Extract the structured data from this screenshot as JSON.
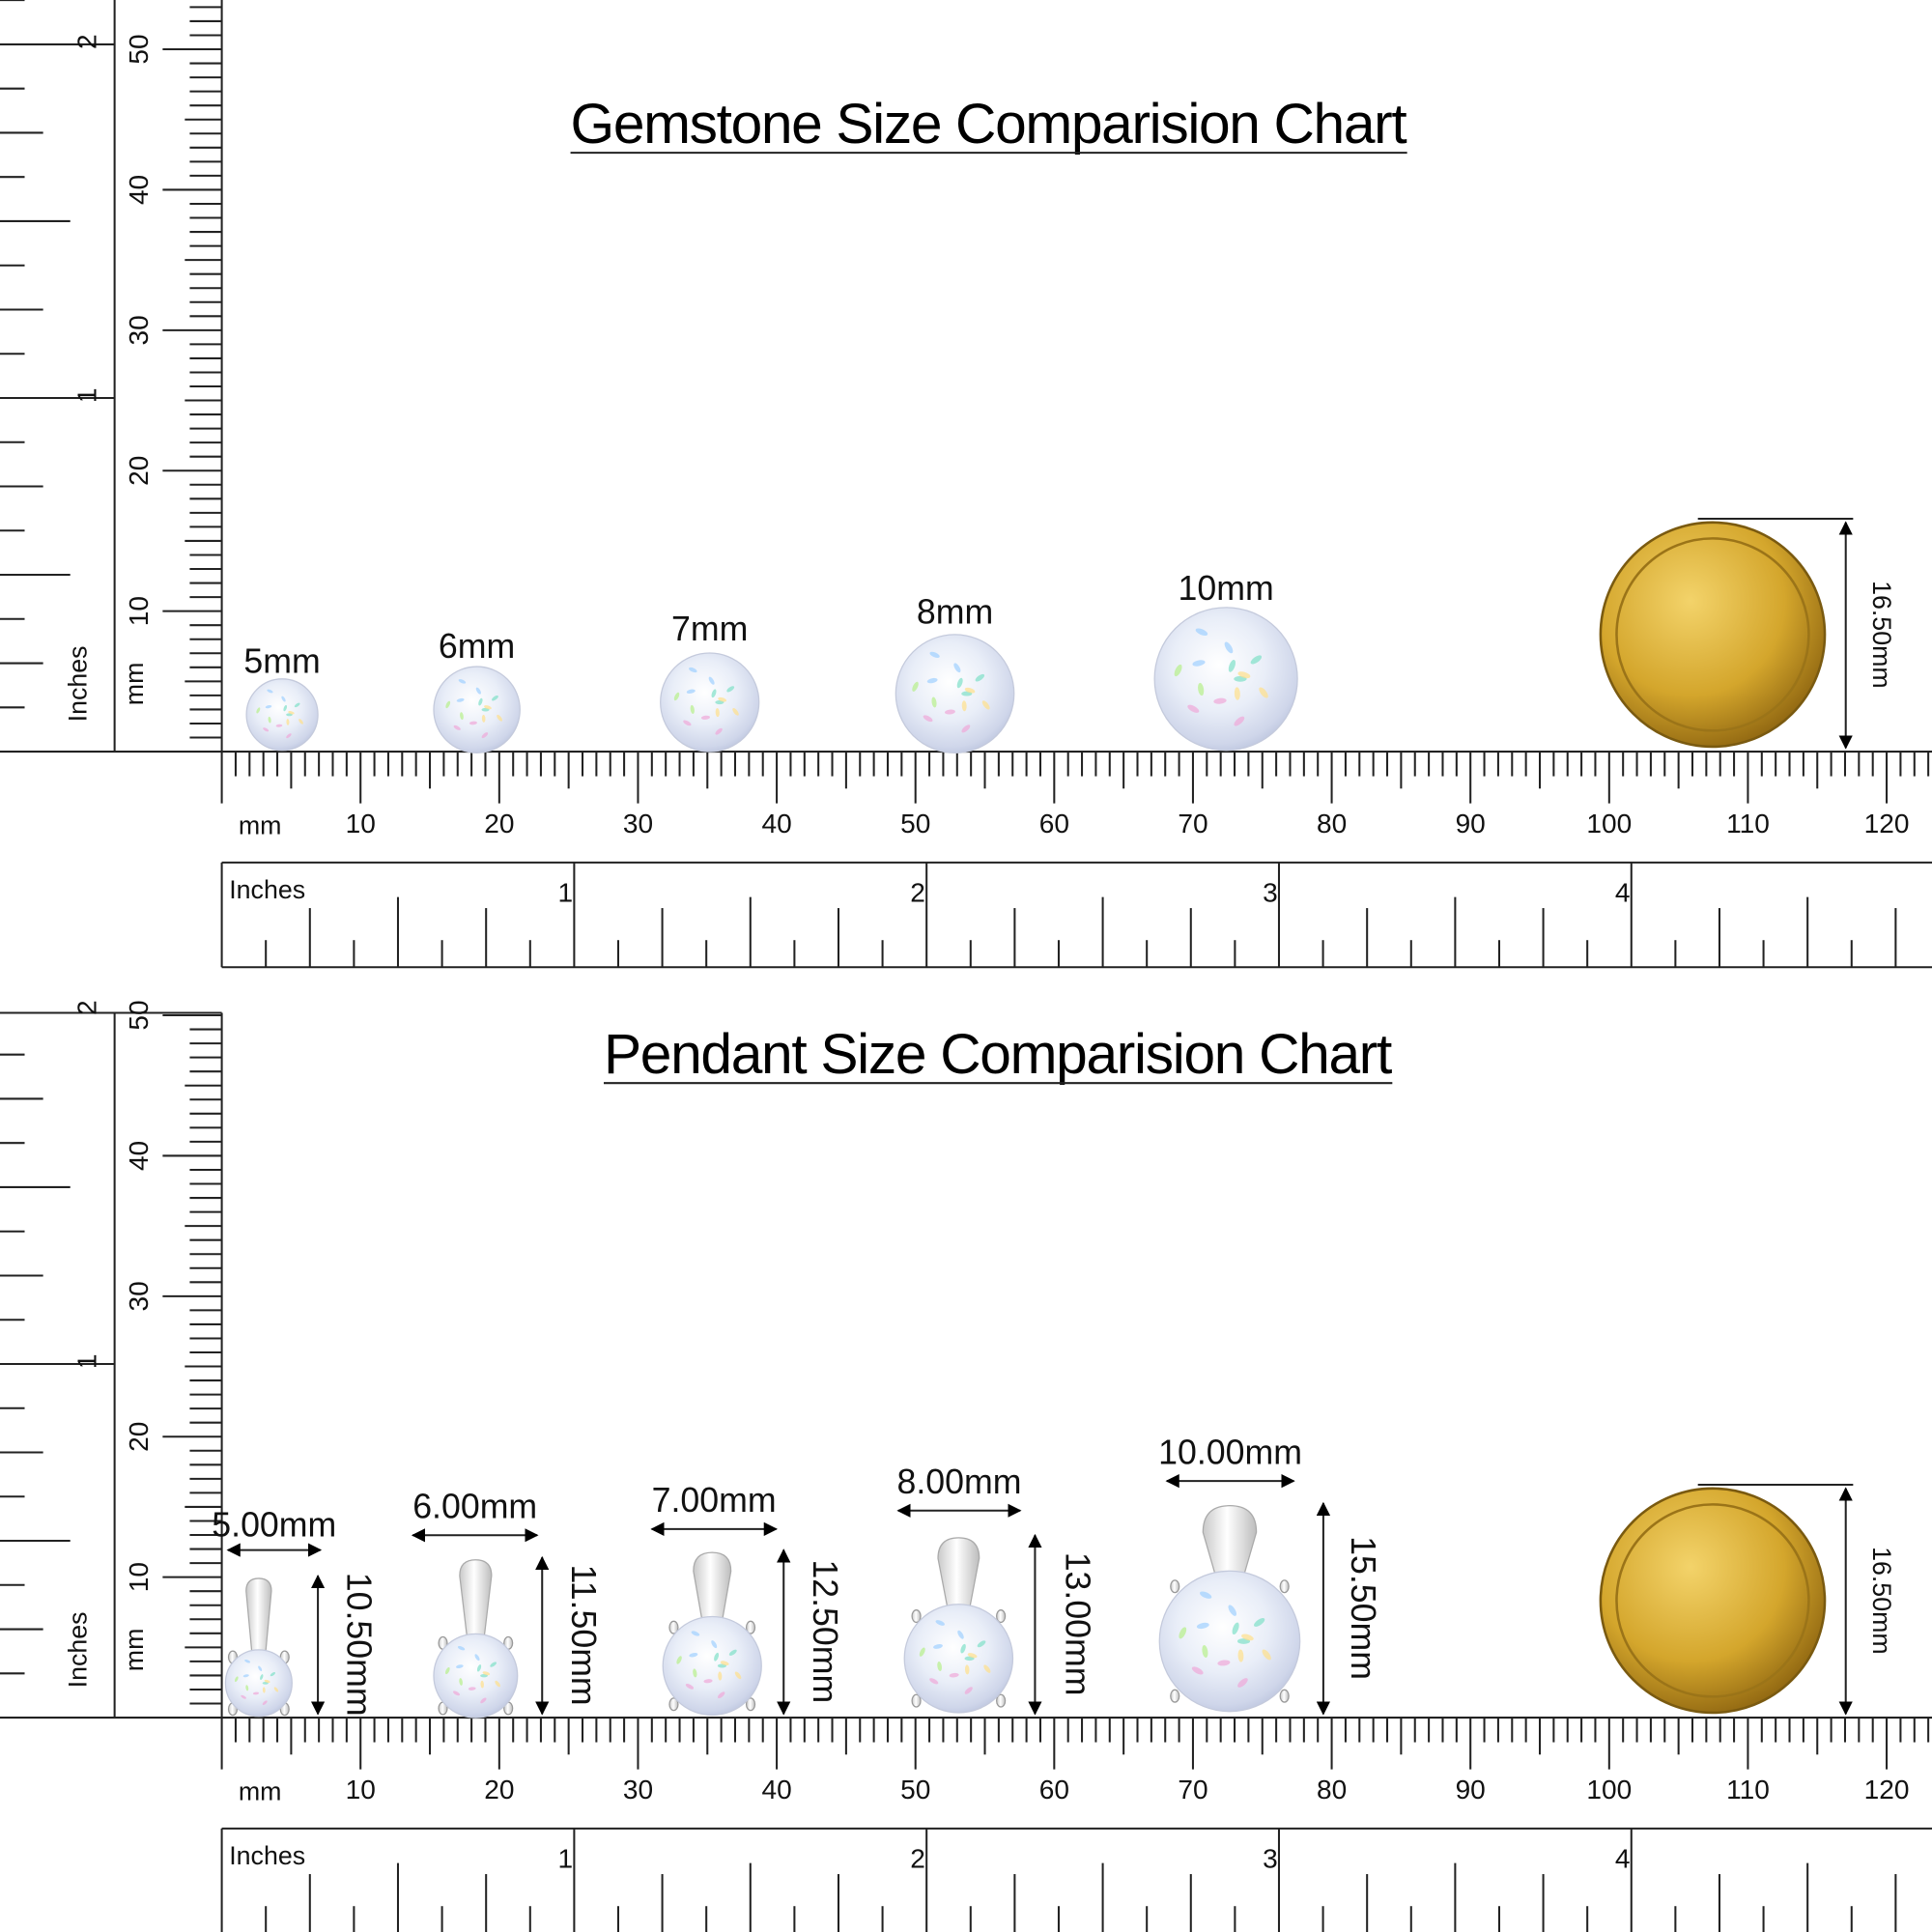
{
  "panels": [
    {
      "title": "Gemstone Size Comparision Chart",
      "items": [
        {
          "label": "5mm"
        },
        {
          "label": "6mm"
        },
        {
          "label": "7mm"
        },
        {
          "label": "8mm"
        },
        {
          "label": "10mm"
        }
      ],
      "coin_label": "16.50mm"
    },
    {
      "title": "Pendant Size Comparision Chart",
      "items": [
        {
          "width_label": "5.00mm",
          "height_label": "10.50mm"
        },
        {
          "width_label": "6.00mm",
          "height_label": "11.50mm"
        },
        {
          "width_label": "7.00mm",
          "height_label": "12.50mm"
        },
        {
          "width_label": "8.00mm",
          "height_label": "13.00mm"
        },
        {
          "width_label": "10.00mm",
          "height_label": "15.50mm"
        }
      ],
      "coin_label": "16.50mm"
    }
  ],
  "ruler": {
    "mm_label": "mm",
    "inches_label": "Inches",
    "mm_ticks": [
      10,
      20,
      30,
      40,
      50,
      60,
      70,
      80,
      90,
      100,
      110,
      120
    ],
    "inch_ticks": [
      1,
      2,
      3,
      4
    ],
    "v_mm_ticks": [
      10,
      20,
      30,
      40,
      50
    ],
    "v_inch_ticks": [
      1,
      2
    ]
  }
}
